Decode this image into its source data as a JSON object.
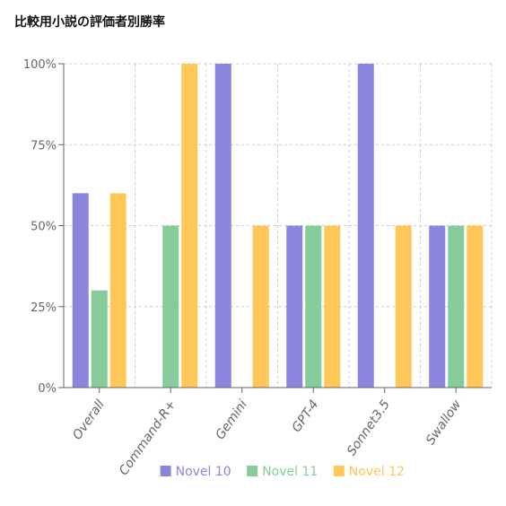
{
  "chart_data": {
    "type": "bar",
    "title": "比較用小説の評価者別勝率",
    "categories": [
      "Overall",
      "Command-R+",
      "Gemini",
      "GPT-4",
      "Sonnet3.5",
      "Swallow"
    ],
    "series": [
      {
        "name": "Novel 10",
        "color": "#8b86dd",
        "values": [
          60,
          0,
          100,
          50,
          100,
          50
        ]
      },
      {
        "name": "Novel 11",
        "color": "#86cb9a",
        "values": [
          30,
          50,
          0,
          50,
          0,
          50
        ]
      },
      {
        "name": "Novel 12",
        "color": "#ffc658",
        "values": [
          60,
          100,
          50,
          50,
          50,
          50
        ]
      }
    ],
    "ylim": [
      0,
      100
    ],
    "yticks": [
      "0%",
      "25%",
      "50%",
      "75%",
      "100%"
    ],
    "grid": true,
    "legend": "bottom"
  }
}
